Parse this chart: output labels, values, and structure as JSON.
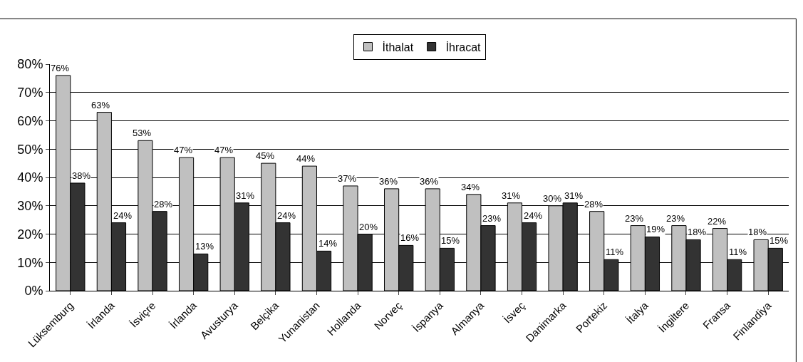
{
  "chart_data": {
    "type": "bar",
    "categories": [
      "Lüksemburg",
      "İrlanda",
      "İsviçre",
      "İrlanda",
      "Avusturya",
      "Belçika",
      "Yunanistan",
      "Hollanda",
      "Norveç",
      "İspanya",
      "Almanya",
      "İsveç",
      "Danimarka",
      "Portekiz",
      "İtalya",
      "İngiltere",
      "Fransa",
      "Finlandiya"
    ],
    "series": [
      {
        "name": "İthalat",
        "color": "#c0c0c0",
        "values": [
          76,
          63,
          53,
          47,
          47,
          45,
          44,
          37,
          36,
          36,
          34,
          31,
          30,
          28,
          23,
          23,
          22,
          18
        ],
        "value_labels": [
          "76%",
          "63%",
          "53%",
          "47%",
          "47%",
          "45%",
          "44%",
          "37%",
          "36%",
          "36%",
          "34%",
          "31%",
          "30%",
          "28%",
          "23%",
          "23%",
          "22%",
          "18%"
        ]
      },
      {
        "name": "İhracat",
        "color": "#333333",
        "values": [
          38,
          24,
          28,
          13,
          31,
          24,
          14,
          20,
          16,
          15,
          23,
          24,
          31,
          11,
          19,
          18,
          11,
          15
        ],
        "value_labels": [
          "38%",
          "24%",
          "28%",
          "13%",
          "31%",
          "24%",
          "14%",
          "20%",
          "16%",
          "15%",
          "23%",
          "24%",
          "31%",
          "11%",
          "19%",
          "18%",
          "11%",
          "15%"
        ]
      }
    ],
    "ylim": [
      0,
      80
    ],
    "yticks": [
      {
        "value": 0,
        "label": "0%"
      },
      {
        "value": 10,
        "label": "10%"
      },
      {
        "value": 20,
        "label": "20%"
      },
      {
        "value": 30,
        "label": "30%"
      },
      {
        "value": 40,
        "label": "40%"
      },
      {
        "value": 50,
        "label": "50%"
      },
      {
        "value": 60,
        "label": "60%"
      },
      {
        "value": 70,
        "label": "70%"
      },
      {
        "value": 80,
        "label": "80%"
      }
    ],
    "grid": "y",
    "legend": "top"
  }
}
